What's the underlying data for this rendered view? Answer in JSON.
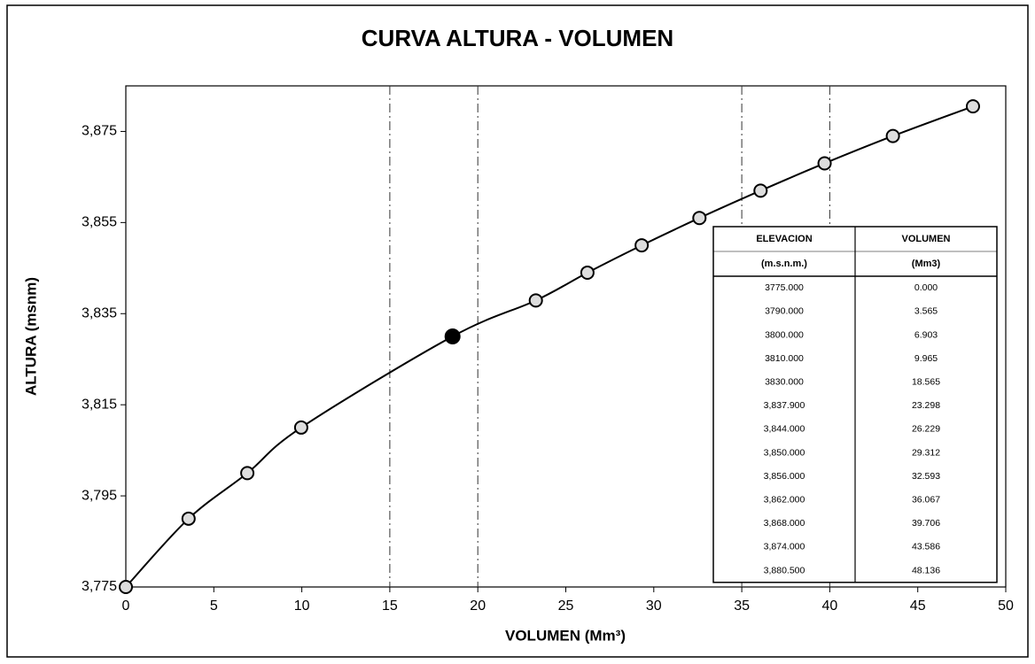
{
  "chart_data": {
    "type": "line",
    "title": "CURVA ALTURA - VOLUMEN",
    "x_label": "VOLUMEN (Mm³)",
    "y_label": "ALTURA  (msnm)",
    "x": [
      0,
      3.565,
      6.903,
      9.965,
      18.565,
      23.298,
      26.229,
      29.312,
      32.593,
      36.067,
      39.706,
      43.586,
      48.136
    ],
    "series": [
      {
        "color": "#000000",
        "values": [
          3775,
          3790,
          3800,
          3810,
          3830,
          3837.9,
          3844,
          3850,
          3856,
          3862,
          3868,
          3874,
          3880.5
        ]
      }
    ],
    "highlight_point": 4,
    "xlim": [
      0,
      50
    ],
    "xticks": [
      0,
      5,
      10,
      15,
      20,
      25,
      30,
      35,
      40,
      45,
      50
    ],
    "ylim": [
      3775,
      3885
    ],
    "yticks": [
      {
        "value": 3775,
        "label": "3,775"
      },
      {
        "value": 3795,
        "label": "3,795"
      },
      {
        "value": 3815,
        "label": "3,815"
      },
      {
        "value": 3835,
        "label": "3,835"
      },
      {
        "value": 3855,
        "label": "3,855"
      },
      {
        "value": 3875,
        "label": "3,875"
      }
    ],
    "vlines": [
      15,
      20,
      35,
      40
    ],
    "table": {
      "header": [
        [
          "ELEVACION",
          "(m.s.n.m.)"
        ],
        [
          "VOLUMEN",
          "(Mm3)"
        ]
      ],
      "rows": [
        [
          "3775.000",
          "0.000"
        ],
        [
          "3790.000",
          "3.565"
        ],
        [
          "3800.000",
          "6.903"
        ],
        [
          "3810.000",
          "9.965"
        ],
        [
          "3830.000",
          "18.565"
        ],
        [
          "3,837.900",
          "23.298"
        ],
        [
          "3,844.000",
          "26.229"
        ],
        [
          "3,850.000",
          "29.312"
        ],
        [
          "3,856.000",
          "32.593"
        ],
        [
          "3,862.000",
          "36.067"
        ],
        [
          "3,868.000",
          "39.706"
        ],
        [
          "3,874.000",
          "43.586"
        ],
        [
          "3,880.500",
          "48.136"
        ]
      ]
    }
  }
}
